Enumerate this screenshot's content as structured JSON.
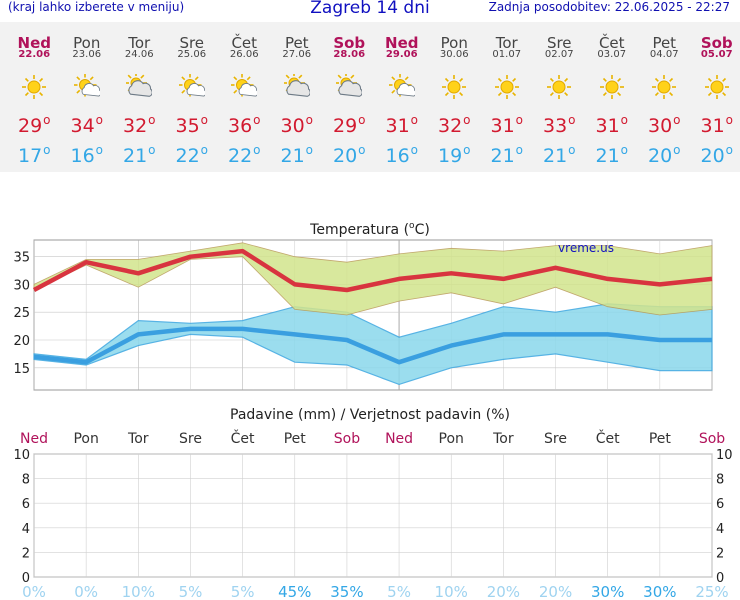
{
  "header": {
    "left_note": "(kraj lahko izberete v meniju)",
    "title": "Zagreb 14 dni",
    "updated": "Zadnja posodobitev: 22.06.2025 - 22:27"
  },
  "days": [
    {
      "name": "Ned",
      "date": "22.06",
      "weekend": true,
      "icon": "sun-icon",
      "tmax": "29",
      "tmin": "17"
    },
    {
      "name": "Pon",
      "date": "23.06",
      "weekend": false,
      "icon": "sun-cloud-icon",
      "tmax": "34",
      "tmin": "16"
    },
    {
      "name": "Tor",
      "date": "24.06",
      "weekend": false,
      "icon": "cloud-sun-icon",
      "tmax": "32",
      "tmin": "21"
    },
    {
      "name": "Sre",
      "date": "25.06",
      "weekend": false,
      "icon": "sun-cloud-icon",
      "tmax": "35",
      "tmin": "22"
    },
    {
      "name": "Čet",
      "date": "26.06",
      "weekend": false,
      "icon": "sun-cloud-icon",
      "tmax": "36",
      "tmin": "22"
    },
    {
      "name": "Pet",
      "date": "27.06",
      "weekend": false,
      "icon": "cloud-sun-icon",
      "tmax": "30",
      "tmin": "21"
    },
    {
      "name": "Sob",
      "date": "28.06",
      "weekend": true,
      "icon": "cloud-sun-icon",
      "tmax": "29",
      "tmin": "20"
    },
    {
      "name": "Ned",
      "date": "29.06",
      "weekend": true,
      "icon": "sun-cloud-icon",
      "tmax": "31",
      "tmin": "16"
    },
    {
      "name": "Pon",
      "date": "30.06",
      "weekend": false,
      "icon": "sun-icon",
      "tmax": "32",
      "tmin": "19"
    },
    {
      "name": "Tor",
      "date": "01.07",
      "weekend": false,
      "icon": "sun-icon",
      "tmax": "31",
      "tmin": "21"
    },
    {
      "name": "Sre",
      "date": "02.07",
      "weekend": false,
      "icon": "sun-icon",
      "tmax": "33",
      "tmin": "21"
    },
    {
      "name": "Čet",
      "date": "03.07",
      "weekend": false,
      "icon": "sun-icon",
      "tmax": "31",
      "tmin": "21"
    },
    {
      "name": "Pet",
      "date": "04.07",
      "weekend": false,
      "icon": "sun-icon",
      "tmax": "30",
      "tmin": "20"
    },
    {
      "name": "Sob",
      "date": "05.07",
      "weekend": true,
      "icon": "sun-icon",
      "tmax": "31",
      "tmin": "20"
    }
  ],
  "colors": {
    "tmax": "#d21a30",
    "tmin": "#33a7e6",
    "max_band": "#d2e48c",
    "min_band": "#8ad8ec",
    "weekend": "#b0125a",
    "precip_prob": "#33a7e6",
    "precip_prob_faint": "#9fd3f0"
  },
  "chart_data": [
    {
      "type": "line",
      "title": "Temperatura (°C)",
      "watermark": "vreme.us",
      "categories": [
        "Ned",
        "Pon",
        "Tor",
        "Sre",
        "Čet",
        "Pet",
        "Sob",
        "Ned",
        "Pon",
        "Tor",
        "Sre",
        "Čet",
        "Pet",
        "Sob"
      ],
      "ylim": [
        11,
        38
      ],
      "yticks": [
        15,
        20,
        25,
        30,
        35
      ],
      "series": [
        {
          "name": "max",
          "values": [
            29,
            34,
            32,
            35,
            36,
            30,
            29,
            31,
            32,
            31,
            33,
            31,
            30,
            31
          ]
        },
        {
          "name": "max_upper",
          "values": [
            30,
            34.5,
            34.5,
            36,
            37.5,
            35,
            34,
            35.5,
            36.5,
            36,
            37,
            37,
            35.5,
            37
          ]
        },
        {
          "name": "max_lower",
          "values": [
            29,
            33.5,
            29.5,
            34.5,
            35,
            25.5,
            24.5,
            27,
            28.5,
            26.5,
            29.5,
            26,
            24.5,
            25.5
          ]
        },
        {
          "name": "min",
          "values": [
            17,
            16,
            21,
            22,
            22,
            21,
            20,
            16,
            19,
            21,
            21,
            21,
            20,
            20
          ]
        },
        {
          "name": "min_upper",
          "values": [
            17.5,
            16.5,
            23.5,
            23,
            23.5,
            26,
            25,
            20.5,
            23,
            26,
            25,
            26.5,
            26,
            26
          ]
        },
        {
          "name": "min_lower",
          "values": [
            16.5,
            15.5,
            19,
            21,
            20.5,
            16,
            15.5,
            12,
            15,
            16.5,
            17.5,
            16,
            14.5,
            14.5
          ]
        }
      ],
      "grid": true
    },
    {
      "type": "bar",
      "title": "Padavine (mm) / Verjetnost padavin (%)",
      "categories": [
        "Ned",
        "Pon",
        "Tor",
        "Sre",
        "Čet",
        "Pet",
        "Sob",
        "Ned",
        "Pon",
        "Tor",
        "Sre",
        "Čet",
        "Pet",
        "Sob"
      ],
      "precip_mm": [
        0,
        0,
        0,
        0,
        0,
        0,
        0,
        0,
        0,
        0,
        0,
        0,
        0,
        0
      ],
      "probability": [
        "0%",
        "0%",
        "10%",
        "5%",
        "5%",
        "45%",
        "35%",
        "5%",
        "10%",
        "20%",
        "20%",
        "30%",
        "30%",
        "25%"
      ],
      "ylim": [
        0,
        10
      ],
      "yticks": [
        "0",
        "2",
        "4",
        "6",
        "8",
        "10"
      ],
      "grid": true
    }
  ]
}
